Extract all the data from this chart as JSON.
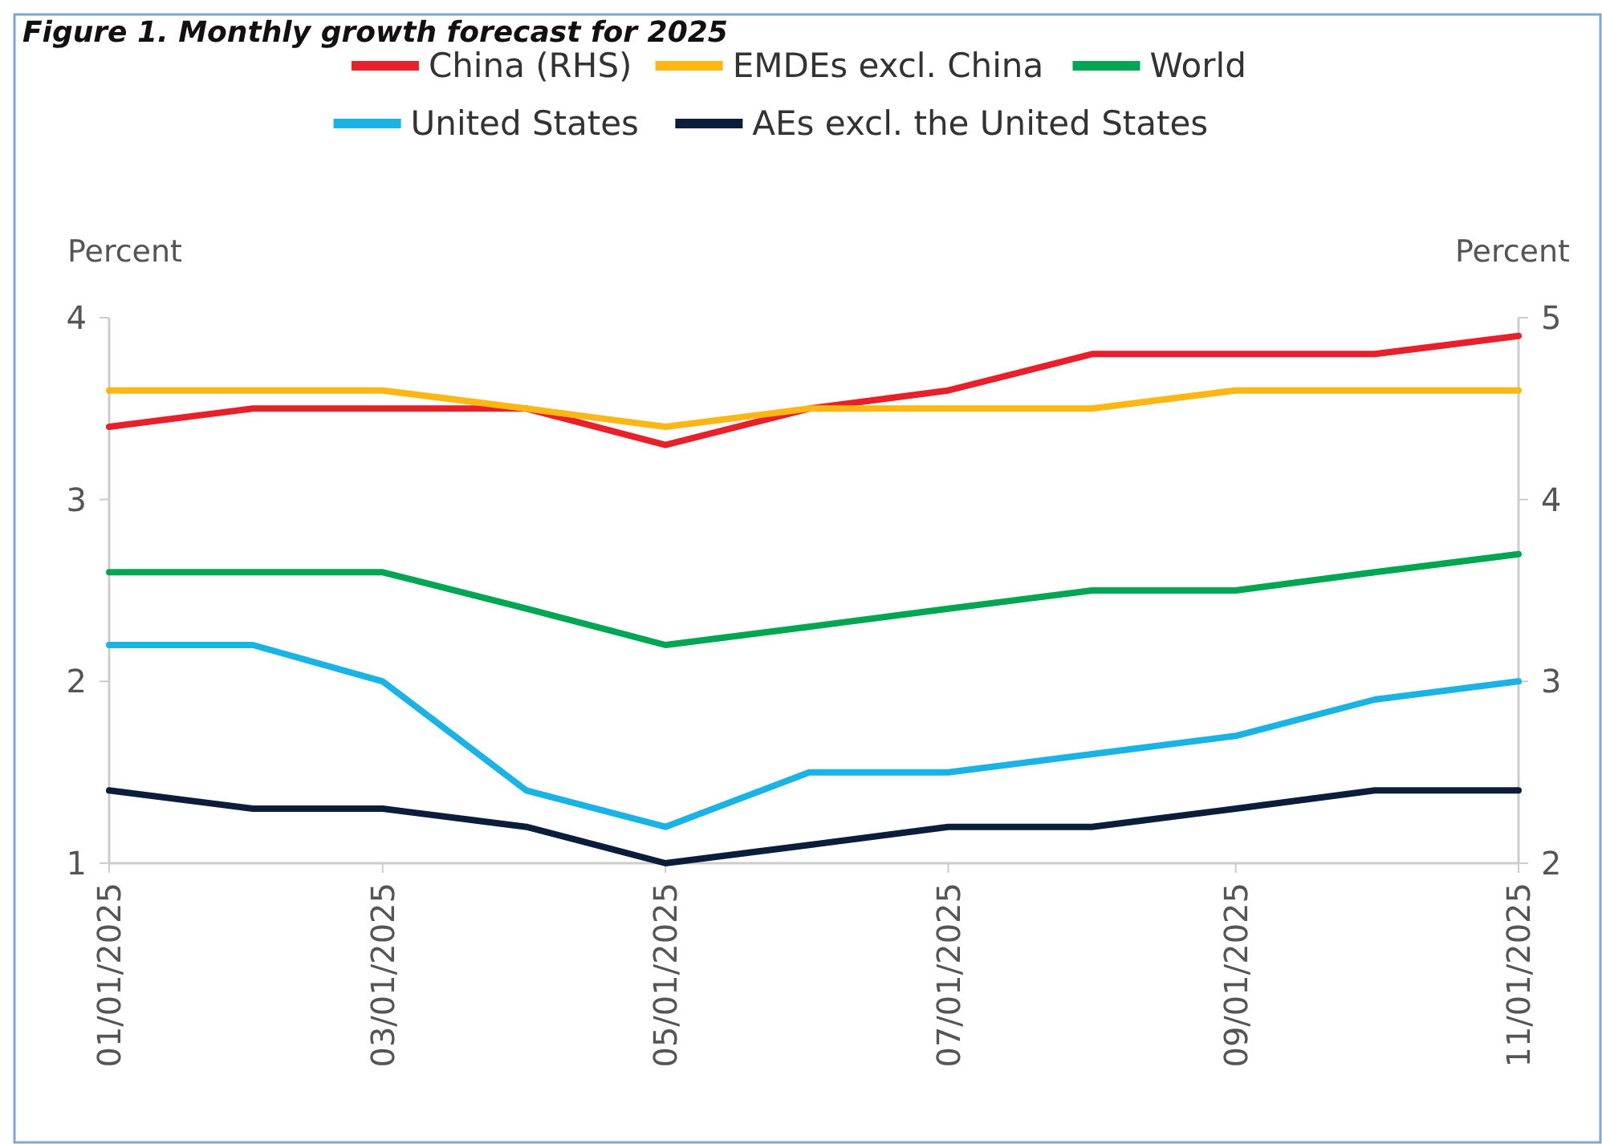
{
  "chart_data": {
    "type": "line",
    "title": "Figure 1. Monthly growth forecast for 2025",
    "ylabel": "Percent",
    "y2label": "Percent",
    "x": [
      "2025-01-01",
      "2025-02-01",
      "2025-03-01",
      "2025-04-01",
      "2025-05-01",
      "2025-06-01",
      "2025-07-01",
      "2025-08-01",
      "2025-09-01",
      "2025-10-01",
      "2025-11-01"
    ],
    "xlim": [
      "2025-01-01",
      "2025-11-01"
    ],
    "xticks": [
      {
        "value": "2025-01-01",
        "label": "01/01/2025"
      },
      {
        "value": "2025-03-01",
        "label": "03/01/2025"
      },
      {
        "value": "2025-05-01",
        "label": "05/01/2025"
      },
      {
        "value": "2025-07-01",
        "label": "07/01/2025"
      },
      {
        "value": "2025-09-01",
        "label": "09/01/2025"
      },
      {
        "value": "2025-11-01",
        "label": "11/01/2025"
      }
    ],
    "ylim": [
      1,
      4
    ],
    "yticks": [
      1,
      2,
      3,
      4
    ],
    "y2lim": [
      2,
      5
    ],
    "y2ticks": [
      2,
      3,
      4,
      5
    ],
    "grid": false,
    "legend": "top",
    "marker": "none",
    "line_style": "solid",
    "series": [
      {
        "name": "China (RHS)",
        "color": "#e8202a",
        "axis": "y2",
        "values": [
          4.4,
          4.5,
          4.5,
          4.5,
          4.3,
          4.5,
          4.6,
          4.8,
          4.8,
          4.8,
          4.9
        ]
      },
      {
        "name": "EMDEs excl. China",
        "color": "#fdb714",
        "values": [
          3.6,
          3.6,
          3.6,
          3.5,
          3.4,
          3.5,
          3.5,
          3.5,
          3.6,
          3.6,
          3.6
        ]
      },
      {
        "name": "World",
        "color": "#00a651",
        "values": [
          2.6,
          2.6,
          2.6,
          2.4,
          2.2,
          2.3,
          2.4,
          2.5,
          2.5,
          2.6,
          2.7
        ]
      },
      {
        "name": "United States",
        "color": "#1ab3e6",
        "values": [
          2.2,
          2.2,
          2.0,
          1.4,
          1.2,
          1.5,
          1.5,
          1.6,
          1.7,
          1.9,
          2.0
        ]
      },
      {
        "name": "AEs excl. the United States",
        "color": "#0a1e3c",
        "values": [
          1.4,
          1.3,
          1.3,
          1.2,
          1.0,
          1.1,
          1.2,
          1.2,
          1.3,
          1.4,
          1.4
        ]
      }
    ]
  }
}
